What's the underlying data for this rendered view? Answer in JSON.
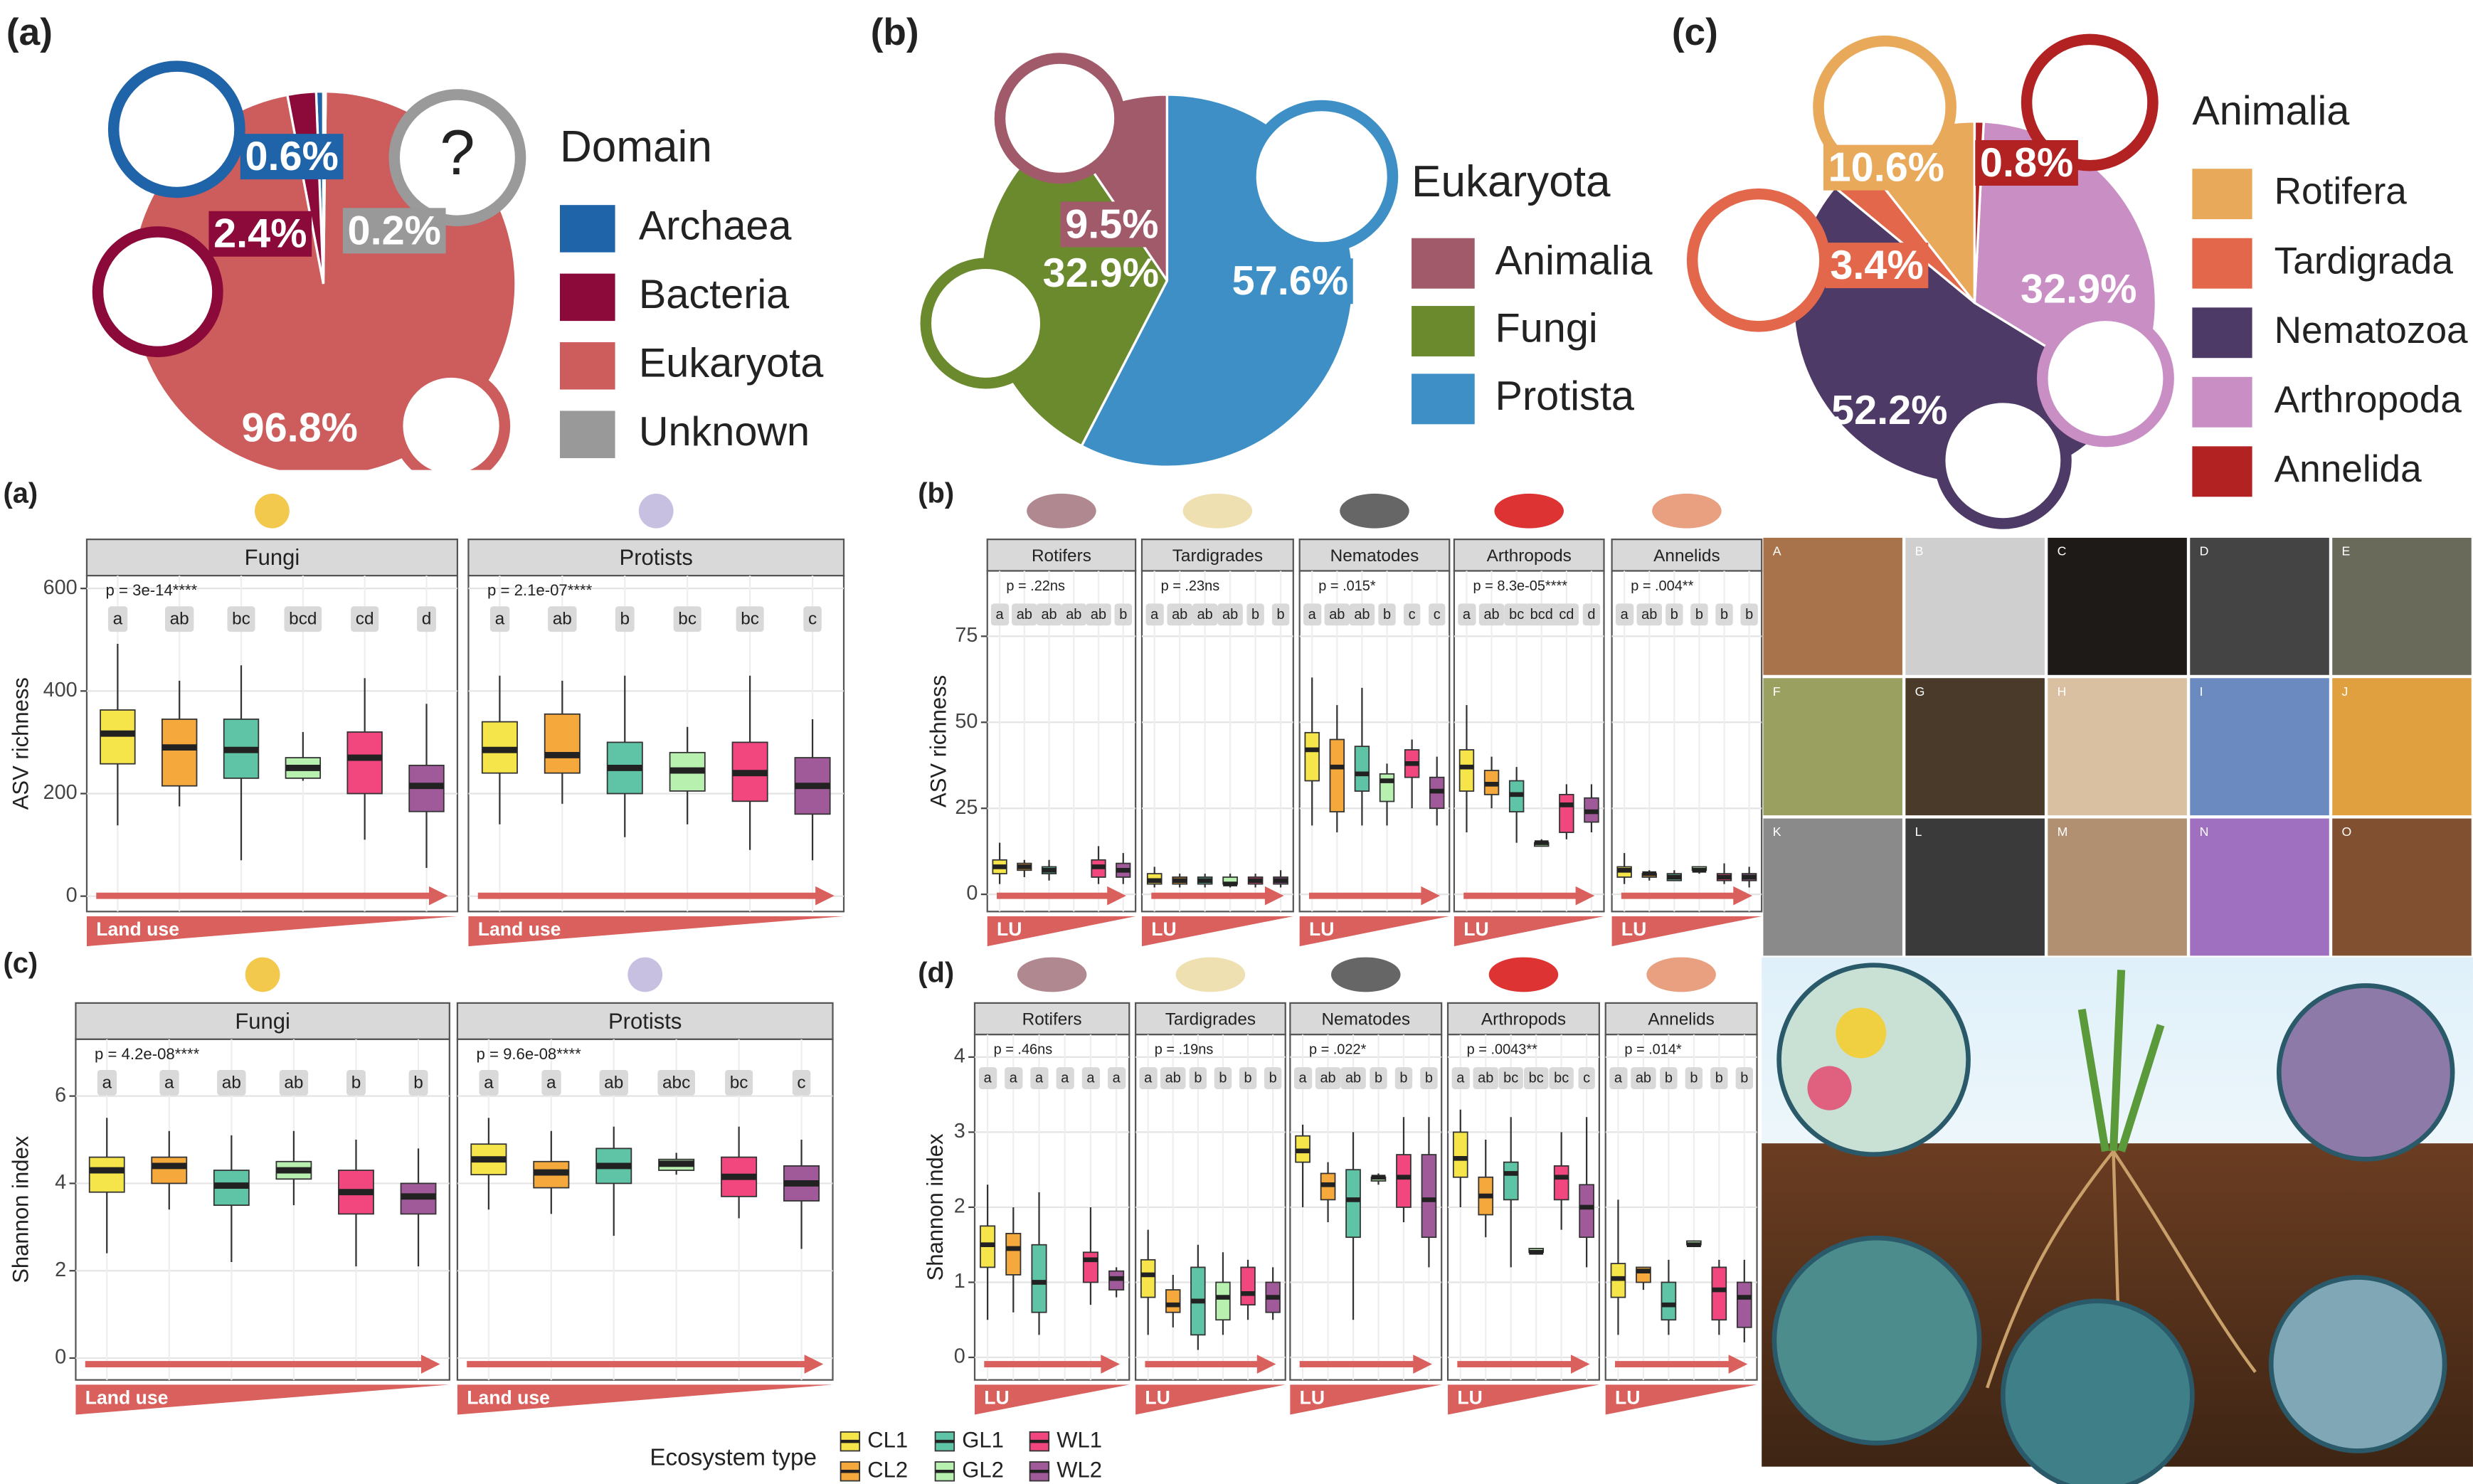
{
  "chart_data": [
    {
      "type": "pie",
      "panel": "(a)",
      "legend_title": "Domain",
      "icon_text": "?",
      "categories": [
        "Archaea",
        "Bacteria",
        "Eukaryota",
        "Unknown"
      ],
      "values": [
        0.6,
        2.4,
        96.8,
        0.2
      ],
      "value_labels": [
        "0.6%",
        "2.4%",
        "96.8%",
        "0.2%"
      ],
      "colors": [
        "#1f63a8",
        "#8b0a3a",
        "#cd5c5c",
        "#999999"
      ]
    },
    {
      "type": "pie",
      "panel": "(b)",
      "legend_title": "Eukaryota",
      "categories": [
        "Animalia",
        "Fungi",
        "Protista"
      ],
      "values": [
        9.5,
        32.9,
        57.6
      ],
      "value_labels": [
        "9.5%",
        "32.9%",
        "57.6%"
      ],
      "colors": [
        "#a05a6a",
        "#6b8a2e",
        "#3d8fc6"
      ]
    },
    {
      "type": "pie",
      "panel": "(c)",
      "legend_title": "Animalia",
      "categories": [
        "Rotifera",
        "Tardigrada",
        "Nematozoa",
        "Arthropoda",
        "Annelida"
      ],
      "values": [
        10.6,
        3.4,
        52.2,
        32.9,
        0.8
      ],
      "value_labels": [
        "10.6%",
        "3.4%",
        "52.2%",
        "32.9%",
        "0.8%"
      ],
      "colors": [
        "#e8a95a",
        "#e3674a",
        "#4e3a66",
        "#c98fc5",
        "#b22222"
      ]
    },
    {
      "type": "box",
      "panel": "(a)",
      "ylabel": "ASV richness",
      "arrow_label": "Land use",
      "ylim": [
        -30,
        625
      ],
      "yticks": [
        0,
        200,
        400,
        600
      ],
      "facets": [
        {
          "title": "Fungi",
          "p_label": "p = 3e-14****",
          "letters": [
            "a",
            "ab",
            "bc",
            "bcd",
            "cd",
            "d"
          ],
          "boxes": [
            [
              138,
              258,
              317,
              363,
              492
            ],
            [
              175,
              215,
              290,
              345,
              420
            ],
            [
              70,
              230,
              285,
              345,
              450
            ],
            [
              225,
              230,
              250,
              270,
              320
            ],
            [
              110,
              200,
              270,
              320,
              425
            ],
            [
              55,
              165,
              215,
              255,
              375
            ]
          ]
        },
        {
          "title": "Protists",
          "p_label": "p = 2.1e-07****",
          "letters": [
            "a",
            "ab",
            "b",
            "bc",
            "bc",
            "c"
          ],
          "boxes": [
            [
              140,
              240,
              285,
              340,
              430
            ],
            [
              180,
              240,
              275,
              355,
              420
            ],
            [
              115,
              200,
              250,
              300,
              430
            ],
            [
              140,
              205,
              245,
              280,
              330
            ],
            [
              90,
              185,
              240,
              300,
              430
            ],
            [
              70,
              160,
              215,
              270,
              345
            ]
          ]
        }
      ]
    },
    {
      "type": "box",
      "panel": "(b)",
      "ylabel": "ASV richness",
      "arrow_label": "LU",
      "ylim": [
        -5,
        94
      ],
      "yticks": [
        0,
        25,
        50,
        75
      ],
      "facets": [
        {
          "title": "Rotifers",
          "p_label": "p = .22ns",
          "letters": [
            "a",
            "ab",
            "ab",
            "ab",
            "ab",
            "b"
          ],
          "boxes": [
            [
              3,
              6,
              8,
              10,
              15
            ],
            [
              5,
              7,
              8,
              9,
              10
            ],
            [
              4,
              6,
              7,
              8,
              10
            ],
            null,
            [
              3,
              5,
              8,
              10,
              14
            ],
            [
              3,
              5,
              7,
              9,
              12
            ]
          ]
        },
        {
          "title": "Tardigrades",
          "p_label": "p = .23ns",
          "letters": [
            "a",
            "ab",
            "ab",
            "ab",
            "b",
            "b"
          ],
          "boxes": [
            [
              2,
              3,
              4,
              6,
              8
            ],
            [
              2,
              3,
              4,
              5,
              6
            ],
            [
              2,
              3,
              4,
              5,
              6
            ],
            [
              2,
              3,
              3,
              5,
              6
            ],
            [
              2,
              3,
              4,
              5,
              6
            ],
            [
              2,
              3,
              4,
              5,
              7
            ]
          ]
        },
        {
          "title": "Nematodes",
          "p_label": "p = .015*",
          "letters": [
            "a",
            "ab",
            "ab",
            "b",
            "c",
            "c"
          ],
          "boxes": [
            [
              20,
              33,
              42,
              47,
              63
            ],
            [
              18,
              24,
              37,
              45,
              55
            ],
            [
              20,
              30,
              35,
              43,
              60
            ],
            [
              20,
              27,
              33,
              35,
              38
            ],
            [
              25,
              34,
              38,
              42,
              45
            ],
            [
              20,
              25,
              30,
              34,
              40
            ]
          ]
        },
        {
          "title": "Arthropods",
          "p_label": "p = 8.3e-05****",
          "letters": [
            "a",
            "ab",
            "bc",
            "bcd",
            "cd",
            "d"
          ],
          "boxes": [
            [
              18,
              30,
              37,
              42,
              55
            ],
            [
              25,
              29,
              32,
              36,
              40
            ],
            [
              15,
              24,
              29,
              33,
              37
            ],
            [
              14,
              14,
              15,
              15,
              16
            ],
            [
              16,
              18,
              26,
              29,
              32
            ],
            [
              18,
              21,
              24,
              28,
              32
            ]
          ]
        },
        {
          "title": "Annelids",
          "p_label": "p = .004**",
          "letters": [
            "a",
            "ab",
            "b",
            "b",
            "b",
            "b"
          ],
          "boxes": [
            [
              3,
              5,
              7,
              8,
              12
            ],
            [
              4,
              5,
              6,
              6,
              7
            ],
            [
              4,
              4,
              5,
              6,
              7
            ],
            [
              6,
              7,
              7,
              8,
              8
            ],
            [
              3,
              4,
              5,
              6,
              9
            ],
            [
              2,
              4,
              5,
              6,
              8
            ]
          ]
        }
      ]
    },
    {
      "type": "box",
      "panel": "(c)",
      "ylabel": "Shannon index",
      "arrow_label": "Land use",
      "ylim": [
        -0.5,
        7.3
      ],
      "yticks": [
        0,
        2,
        4,
        6
      ],
      "facets": [
        {
          "title": "Fungi",
          "p_label": "p = 4.2e-08****",
          "letters": [
            "a",
            "a",
            "ab",
            "ab",
            "b",
            "b"
          ],
          "boxes": [
            [
              2.4,
              3.8,
              4.3,
              4.6,
              5.5
            ],
            [
              3.4,
              4.0,
              4.4,
              4.6,
              5.2
            ],
            [
              2.2,
              3.5,
              3.95,
              4.3,
              5.1
            ],
            [
              3.5,
              4.1,
              4.3,
              4.5,
              5.2
            ],
            [
              2.1,
              3.3,
              3.8,
              4.3,
              5.0
            ],
            [
              2.1,
              3.3,
              3.7,
              4.0,
              4.8
            ]
          ]
        },
        {
          "title": "Protists",
          "p_label": "p = 9.6e-08****",
          "letters": [
            "a",
            "a",
            "ab",
            "abc",
            "bc",
            "c"
          ],
          "boxes": [
            [
              3.4,
              4.2,
              4.55,
              4.9,
              5.5
            ],
            [
              3.3,
              3.9,
              4.25,
              4.5,
              5.2
            ],
            [
              2.8,
              4.0,
              4.4,
              4.8,
              5.3
            ],
            [
              4.2,
              4.3,
              4.45,
              4.55,
              4.7
            ],
            [
              3.2,
              3.7,
              4.15,
              4.6,
              5.3
            ],
            [
              2.5,
              3.6,
              4.0,
              4.4,
              5.0
            ]
          ]
        }
      ]
    },
    {
      "type": "box",
      "panel": "(d)",
      "ylabel": "Shannon index",
      "arrow_label": "LU",
      "ylim": [
        -0.3,
        4.3
      ],
      "yticks": [
        0,
        1,
        2,
        3,
        4
      ],
      "facets": [
        {
          "title": "Rotifers",
          "p_label": "p = .46ns",
          "letters": [
            "a",
            "a",
            "a",
            "a",
            "a",
            "a"
          ],
          "boxes": [
            [
              0.5,
              1.2,
              1.5,
              1.75,
              2.3
            ],
            [
              0.6,
              1.1,
              1.45,
              1.65,
              2.0
            ],
            [
              0.3,
              0.6,
              1.0,
              1.5,
              2.2
            ],
            null,
            [
              0.7,
              1.0,
              1.3,
              1.4,
              2.0
            ],
            [
              0.8,
              0.9,
              1.05,
              1.15,
              1.2
            ]
          ]
        },
        {
          "title": "Tardigrades",
          "p_label": "p = .19ns",
          "letters": [
            "a",
            "ab",
            "b",
            "b",
            "b",
            "b"
          ],
          "boxes": [
            [
              0.3,
              0.8,
              1.1,
              1.3,
              1.7
            ],
            [
              0.4,
              0.6,
              0.7,
              0.9,
              1.1
            ],
            [
              0.1,
              0.3,
              0.75,
              1.2,
              1.5
            ],
            [
              0.3,
              0.5,
              0.8,
              1.0,
              1.4
            ],
            [
              0.5,
              0.7,
              0.85,
              1.2,
              1.3
            ],
            [
              0.5,
              0.6,
              0.8,
              1.0,
              1.2
            ]
          ]
        },
        {
          "title": "Nematodes",
          "p_label": "p = .022*",
          "letters": [
            "a",
            "ab",
            "ab",
            "b",
            "b",
            "b"
          ],
          "boxes": [
            [
              2.0,
              2.6,
              2.75,
              2.95,
              3.1
            ],
            [
              1.8,
              2.1,
              2.3,
              2.45,
              2.6
            ],
            [
              0.5,
              1.6,
              2.1,
              2.5,
              3.0
            ],
            [
              2.3,
              2.35,
              2.4,
              2.4,
              2.45
            ],
            [
              1.8,
              2.0,
              2.4,
              2.7,
              3.2
            ],
            [
              1.2,
              1.6,
              2.1,
              2.7,
              3.2
            ]
          ]
        },
        {
          "title": "Arthropods",
          "p_label": "p = .0043**",
          "letters": [
            "a",
            "ab",
            "bc",
            "bc",
            "bc",
            "c"
          ],
          "boxes": [
            [
              2.0,
              2.4,
              2.65,
              3.0,
              3.3
            ],
            [
              1.6,
              1.9,
              2.15,
              2.4,
              2.9
            ],
            [
              1.2,
              2.1,
              2.45,
              2.6,
              3.2
            ],
            [
              1.4,
              1.4,
              1.4,
              1.45,
              1.45
            ],
            [
              1.7,
              2.1,
              2.4,
              2.55,
              3.0
            ],
            [
              1.2,
              1.6,
              2.0,
              2.3,
              3.2
            ]
          ]
        },
        {
          "title": "Annelids",
          "p_label": "p = .014*",
          "letters": [
            "a",
            "ab",
            "b",
            "b",
            "b",
            "b"
          ],
          "boxes": [
            [
              0.3,
              0.8,
              1.05,
              1.25,
              2.1
            ],
            [
              0.9,
              1.0,
              1.15,
              1.2,
              1.2
            ],
            [
              0.3,
              0.5,
              0.7,
              1.0,
              1.3
            ],
            [
              1.5,
              1.5,
              1.5,
              1.55,
              1.55
            ],
            [
              0.3,
              0.5,
              0.9,
              1.2,
              1.3
            ],
            [
              0.2,
              0.4,
              0.8,
              1.0,
              1.3
            ]
          ]
        }
      ]
    }
  ],
  "legend": {
    "title": "Ecosystem type",
    "names": [
      "CL1",
      "CL2",
      "GL1",
      "GL2",
      "WL1",
      "WL2"
    ],
    "colors": [
      "#f5e54a",
      "#f5a83c",
      "#5fc3a5",
      "#b8f0b0",
      "#f2467f",
      "#a05a9a"
    ]
  },
  "photos": {
    "labels": [
      "A",
      "B",
      "C",
      "D",
      "E",
      "F",
      "G",
      "H",
      "I",
      "J",
      "K",
      "L",
      "M",
      "N",
      "O"
    ]
  }
}
